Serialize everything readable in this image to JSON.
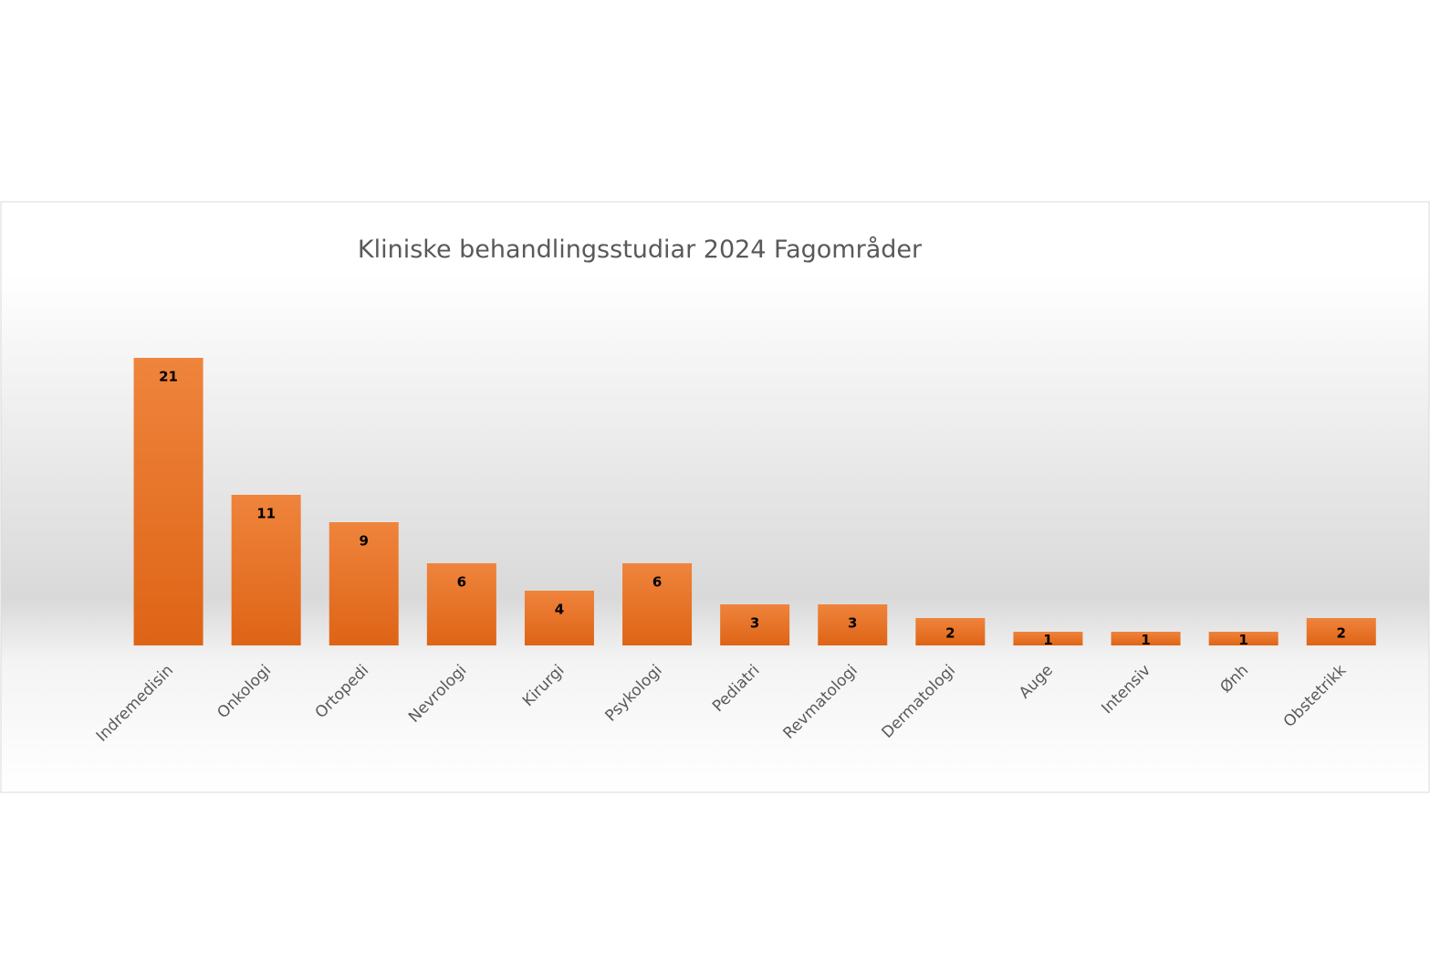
{
  "chart_data": {
    "type": "bar",
    "title": "Kliniske behandlingsstudiar 2024 Fagområder",
    "categories": [
      "Indremedisin",
      "Onkologi",
      "Ortopedi",
      "Nevrologi",
      "Kirurgi",
      "Psykologi",
      "Pediatri",
      "Revmatologi",
      "Dermatologi",
      "Auge",
      "Intensiv",
      "Ønh",
      "Obstetrikk"
    ],
    "values": [
      21,
      11,
      9,
      6,
      4,
      6,
      3,
      3,
      2,
      1,
      1,
      1,
      2
    ],
    "color": "#e8732a"
  }
}
